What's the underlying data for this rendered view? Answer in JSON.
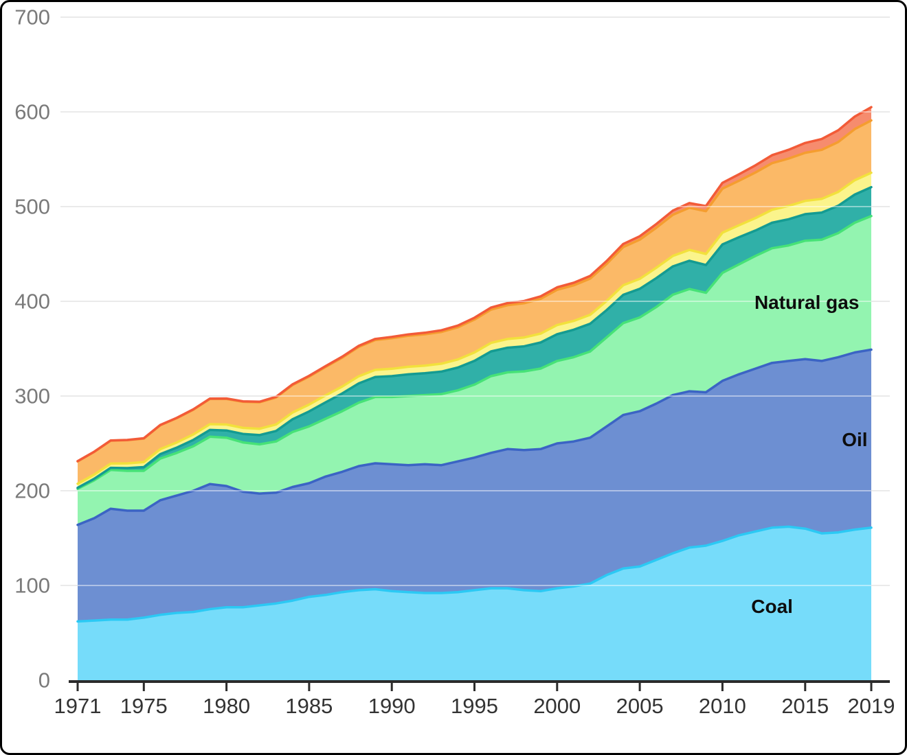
{
  "page": {
    "background": "#ffffff",
    "border_color": "#000000"
  },
  "chart_data": {
    "type": "area",
    "stacked": true,
    "title": "",
    "xlabel": "",
    "ylabel": "",
    "xlim": [
      1971,
      2019
    ],
    "ylim": [
      0,
      700
    ],
    "grid": "horizontal",
    "grid_color": "#d9d9d9",
    "axis_color": "#2b2b2b",
    "y_tick_label_color": "#7a7a7a",
    "x_tick_label_color": "#333333",
    "y_ticks": [
      0,
      100,
      200,
      300,
      400,
      500,
      600,
      700
    ],
    "x_tick_years": [
      1971,
      1975,
      1980,
      1985,
      1990,
      1995,
      2000,
      2005,
      2010,
      2015,
      2019
    ],
    "x_tick_labels": [
      "1971",
      "1975",
      "1980",
      "1985",
      "1990",
      "1995",
      "2000",
      "2005",
      "2010",
      "2015",
      "2019"
    ],
    "x": [
      1971,
      1972,
      1973,
      1974,
      1975,
      1976,
      1977,
      1978,
      1979,
      1980,
      1981,
      1982,
      1983,
      1984,
      1985,
      1986,
      1987,
      1988,
      1989,
      1990,
      1991,
      1992,
      1993,
      1994,
      1995,
      1996,
      1997,
      1998,
      1999,
      2000,
      2001,
      2002,
      2003,
      2004,
      2005,
      2006,
      2007,
      2008,
      2009,
      2010,
      2011,
      2012,
      2013,
      2014,
      2015,
      2016,
      2017,
      2018,
      2019
    ],
    "series": [
      {
        "id": "coal",
        "label": "Coal",
        "fill": "#76dcfa",
        "stroke": "#2bc9f4",
        "values": [
          62,
          63,
          64,
          64,
          66,
          69,
          71,
          72,
          75,
          77,
          77,
          79,
          81,
          84,
          88,
          90,
          93,
          95,
          96,
          94,
          93,
          92,
          92,
          93,
          95,
          97,
          97,
          95,
          94,
          97,
          99,
          102,
          111,
          118,
          120,
          127,
          134,
          140,
          142,
          147,
          153,
          157,
          161,
          162,
          160,
          155,
          156,
          159,
          161
        ]
      },
      {
        "id": "oil",
        "label": "Oil",
        "fill": "#6d8fd2",
        "stroke": "#3b64c4",
        "values": [
          102,
          108,
          117,
          115,
          113,
          121,
          124,
          128,
          132,
          128,
          122,
          118,
          117,
          120,
          120,
          125,
          127,
          131,
          133,
          134,
          134,
          136,
          135,
          138,
          140,
          143,
          147,
          148,
          150,
          153,
          153,
          154,
          157,
          162,
          164,
          165,
          167,
          165,
          162,
          169,
          170,
          172,
          174,
          175,
          179,
          182,
          185,
          187,
          188
        ]
      },
      {
        "id": "natural-gas",
        "label": "Natural gas",
        "fill": "#93f4b0",
        "stroke": "#47e277",
        "values": [
          38,
          40,
          41,
          42,
          42,
          44,
          45,
          47,
          50,
          51,
          52,
          52,
          54,
          58,
          60,
          61,
          64,
          67,
          70,
          71,
          73,
          73,
          75,
          75,
          77,
          81,
          81,
          83,
          85,
          87,
          89,
          91,
          94,
          97,
          99,
          102,
          106,
          108,
          105,
          114,
          116,
          119,
          121,
          122,
          125,
          128,
          131,
          137,
          141
        ]
      },
      {
        "id": "teal-band",
        "label": "",
        "fill": "#30b0a8",
        "stroke": "#149b92",
        "values": [
          1.1,
          1.6,
          2.2,
          2.9,
          4,
          4.7,
          5.6,
          6.7,
          7.2,
          7.6,
          9,
          9.8,
          11.1,
          13.5,
          15.8,
          17.4,
          18.7,
          20.3,
          21.1,
          22,
          22.9,
          23.1,
          23.8,
          24.1,
          25.1,
          26.1,
          26,
          26.5,
          27.5,
          28.3,
          29,
          29.3,
          28.8,
          29.9,
          30.2,
          30.5,
          29.9,
          29.8,
          29.3,
          30.1,
          28.7,
          26.8,
          27,
          27.7,
          28,
          28.6,
          28.9,
          29.7,
          30.5
        ]
      },
      {
        "id": "yellow-band",
        "label": "",
        "fill": "#fbf48c",
        "stroke": "#f2e13c",
        "values": [
          4.3,
          4.5,
          4.5,
          5,
          5.2,
          5.2,
          5.4,
          5.8,
          6.1,
          6.3,
          6.4,
          6.6,
          6.9,
          7.1,
          7.2,
          7.3,
          7.3,
          7.6,
          7.5,
          7.8,
          8,
          8,
          8.3,
          8.5,
          8.9,
          9,
          9.2,
          9.3,
          9.4,
          9.6,
          9.3,
          9.5,
          9.6,
          10.1,
          10.5,
          10.9,
          11.1,
          11.5,
          11.7,
          12.4,
          12.6,
          13.1,
          13.6,
          14,
          14,
          14.5,
          14.6,
          15.1,
          15.2
        ]
      },
      {
        "id": "orange-band",
        "label": "",
        "fill": "#fbb967",
        "stroke": "#f59d2f",
        "values": [
          23.6,
          23.9,
          24.2,
          24.5,
          24.9,
          25.3,
          25.7,
          26.1,
          26.6,
          27,
          27.5,
          28,
          28.5,
          29,
          29.5,
          30,
          30.5,
          31,
          31.5,
          32.2,
          32.7,
          33.1,
          33.6,
          34,
          34.7,
          35.2,
          35.7,
          36.2,
          36.8,
          37.3,
          37.6,
          38.2,
          39.2,
          40.3,
          41.4,
          42.3,
          43.4,
          44.5,
          45.2,
          46.5,
          47,
          48.2,
          49.3,
          50,
          50.8,
          51.8,
          52.7,
          54,
          55.3
        ]
      },
      {
        "id": "red-band",
        "label": "",
        "fill": "#f68c6e",
        "stroke": "#f25b38",
        "values": [
          0.2,
          0.2,
          0.2,
          0.2,
          0.3,
          0.3,
          0.3,
          0.4,
          0.4,
          0.5,
          0.5,
          0.6,
          0.7,
          0.8,
          0.9,
          0.9,
          1,
          1.1,
          1.2,
          1.5,
          1.5,
          1.6,
          1.7,
          1.8,
          2,
          2.1,
          2.2,
          2.3,
          2.5,
          2.6,
          2.7,
          2.8,
          3,
          3.3,
          3.6,
          3.9,
          4.4,
          4.9,
          5.4,
          6.1,
          6.8,
          7.5,
          8.4,
          9.3,
          10.4,
          11.4,
          12.4,
          13.2,
          14
        ]
      }
    ],
    "annotations": [
      {
        "text": "Natural gas",
        "year": 2015.1,
        "value": 399,
        "color": "#0d0d0d"
      },
      {
        "text": "Oil",
        "year": 2018.0,
        "value": 254,
        "color": "#0d0d0d"
      },
      {
        "text": "Coal",
        "year": 2013.0,
        "value": 78,
        "color": "#0d0d0d"
      }
    ]
  }
}
